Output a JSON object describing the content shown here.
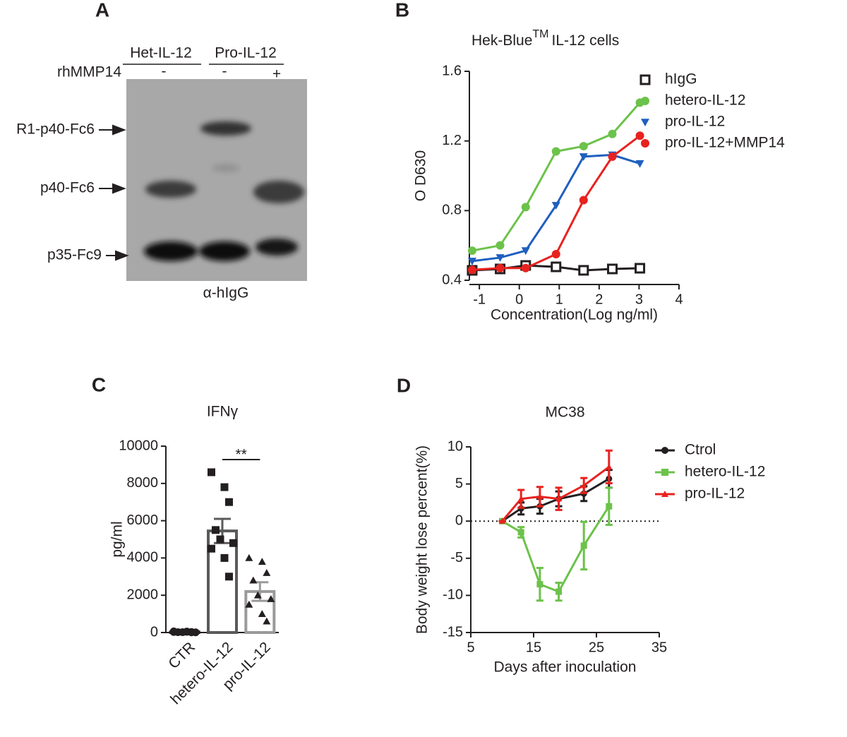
{
  "blot": {
    "panel": "A",
    "header_groups": [
      "Het-IL-12",
      "Pro-IL-12"
    ],
    "treatment": "rhMMP14",
    "treatment_marks": [
      "-",
      "-",
      "+"
    ],
    "band_labels": [
      "R1-p40-Fc6",
      "p40-Fc6",
      "p35-Fc9"
    ],
    "antibody": "α-hIgG"
  },
  "chart_data": [
    {
      "type": "scatter",
      "panel": "B",
      "title": "Hek-Blue",
      "title_sup": "TM",
      "title_rest": "IL-12 cells",
      "x_label": "Concentration(Log ng/ml)",
      "y_label": "O D630",
      "xlim": [
        -1.25,
        4
      ],
      "xticks": [
        -1,
        0,
        1,
        2,
        3,
        4
      ],
      "ylim": [
        0.4,
        1.6
      ],
      "yticks": [
        0.4,
        0.8,
        1.2,
        1.6
      ],
      "legend": "top-right",
      "series": [
        {
          "name": "hIgG",
          "color": "#231f20",
          "marker": "open-square",
          "x": [
            -1.18,
            -0.48,
            0.16,
            0.92,
            1.61,
            2.33,
            3.02
          ],
          "values": [
            0.457,
            0.465,
            0.485,
            0.477,
            0.457,
            0.465,
            0.469
          ]
        },
        {
          "name": "hetero-IL-12",
          "color": "#6cc24a",
          "marker": "circle",
          "x": [
            -1.18,
            -0.48,
            0.16,
            0.92,
            1.61,
            2.33,
            3.02
          ],
          "values": [
            0.57,
            0.6,
            0.82,
            1.14,
            1.17,
            1.24,
            1.42
          ]
        },
        {
          "name": "pro-IL-12",
          "color": "#1f5fbf",
          "marker": "triangle-down",
          "x": [
            -1.18,
            -0.48,
            0.16,
            0.92,
            1.61,
            2.33,
            3.02
          ],
          "values": [
            0.51,
            0.53,
            0.57,
            0.83,
            1.11,
            1.12,
            1.07
          ]
        },
        {
          "name": "pro-IL-12+MMP14",
          "color": "#e8221f",
          "marker": "circle",
          "x": [
            -1.18,
            -0.48,
            0.16,
            0.92,
            1.61,
            2.33,
            3.02
          ],
          "values": [
            0.46,
            0.47,
            0.47,
            0.55,
            0.86,
            1.11,
            1.23
          ]
        }
      ]
    },
    {
      "type": "bar",
      "panel": "C",
      "title": "IFNγ",
      "y_label": "pg/ml",
      "categories": [
        "CTR",
        "hetero-IL-12",
        "pro-IL-12"
      ],
      "colors": [
        "#231f20",
        "#5a5a5a",
        "#9a9a9a"
      ],
      "values": [
        30,
        5450,
        2200
      ],
      "errors": [
        30,
        650,
        500
      ],
      "points": [
        [
          60,
          40,
          30,
          20,
          20,
          10,
          30,
          50,
          10
        ],
        [
          8600,
          7800,
          7000,
          5500,
          5000,
          4800,
          4500,
          4000,
          3000
        ],
        [
          4000,
          3800,
          3200,
          2800,
          2000,
          1800,
          1500,
          1000,
          600
        ]
      ],
      "markers": [
        "circle",
        "square",
        "triangle"
      ],
      "ylim": [
        0,
        10000
      ],
      "yticks": [
        0,
        2000,
        4000,
        6000,
        8000,
        10000
      ],
      "annotation": "**"
    },
    {
      "type": "line",
      "panel": "D",
      "title": "MC38",
      "x_label": "Days after inoculation",
      "y_label": "Body weight lose percent(%)",
      "xlim": [
        5,
        35
      ],
      "xticks": [
        5,
        15,
        25,
        35
      ],
      "ylim": [
        -15,
        10
      ],
      "yticks": [
        -15,
        -10,
        -5,
        0,
        5,
        10
      ],
      "hline": 0,
      "legend": "top-right",
      "x": [
        10,
        13,
        16,
        19,
        23,
        27
      ],
      "series": [
        {
          "name": "Ctrol",
          "color": "#231f20",
          "marker": "circle",
          "values": [
            0,
            1.7,
            2.0,
            3.0,
            3.7,
            5.7
          ],
          "errors": [
            0,
            0.8,
            1.0,
            1.0,
            1.0,
            1.2
          ]
        },
        {
          "name": "hetero-IL-12",
          "color": "#6cc24a",
          "marker": "square",
          "values": [
            0,
            -1.5,
            -8.5,
            -9.5,
            -3.3,
            2.0
          ],
          "errors": [
            0,
            0.7,
            2.2,
            1.2,
            3.2,
            2.5
          ]
        },
        {
          "name": "pro-IL-12",
          "color": "#e8221f",
          "marker": "triangle",
          "values": [
            0,
            3.0,
            3.3,
            3.0,
            4.8,
            7.3
          ],
          "errors": [
            0,
            1.2,
            1.3,
            1.5,
            1.0,
            2.2
          ]
        }
      ]
    }
  ]
}
